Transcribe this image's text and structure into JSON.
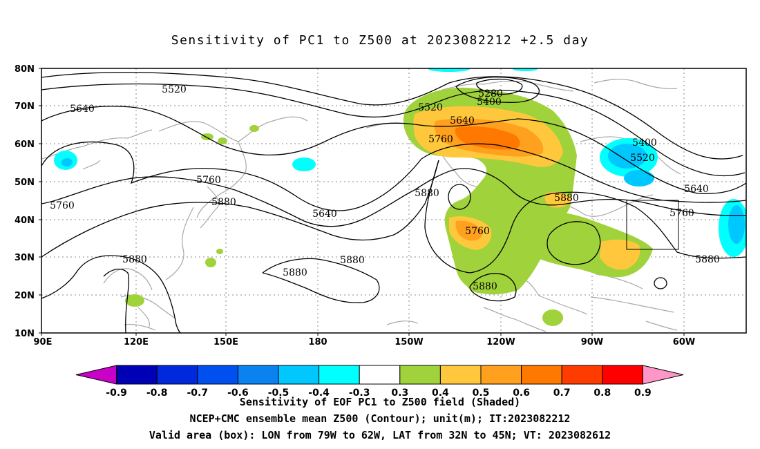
{
  "title": "Sensitivity of PC1 to Z500 at 2023082212 +2.5 day",
  "map": {
    "projection": "cylindrical equidistant",
    "lon_range": [
      "90E",
      "30W"
    ],
    "lat_range": [
      "10N",
      "80N"
    ],
    "x_ticks": [
      "90E",
      "120E",
      "150E",
      "180",
      "150W",
      "120W",
      "90W",
      "60W"
    ],
    "y_ticks": [
      "80N",
      "70N",
      "60N",
      "50N",
      "40N",
      "30N",
      "20N",
      "10N"
    ],
    "grid": "dotted",
    "coastline_color": "#a0a0a0",
    "contour_labels": [
      "5520",
      "5640",
      "5760",
      "5880",
      "5280",
      "5400",
      "5520",
      "5640",
      "5760",
      "5880",
      "5760",
      "5400",
      "5520",
      "5640",
      "5760",
      "5880",
      "5880",
      "5880",
      "5880",
      "5760",
      "5880",
      "5880",
      "5640"
    ],
    "valid_box": {
      "lon_west": "79W",
      "lon_east": "62W",
      "lat_south": "32N",
      "lat_north": "45N"
    }
  },
  "colorbar": {
    "labels": [
      "-0.9",
      "-0.8",
      "-0.7",
      "-0.6",
      "-0.5",
      "-0.4",
      "-0.3",
      "0.3",
      "0.4",
      "0.5",
      "0.6",
      "0.7",
      "0.8",
      "0.9"
    ],
    "colors": [
      "#c800c8",
      "#0000b4",
      "#0028dc",
      "#0050f0",
      "#0a82f0",
      "#00c8ff",
      "#00ffff",
      "#ffffff",
      "#a0d23c",
      "#ffc83c",
      "#ffa01e",
      "#ff7800",
      "#ff3c00",
      "#ff0000",
      "#ff96c8"
    ]
  },
  "captions": {
    "line1": "Sensitivity of EOF PC1 to Z500 field (Shaded)",
    "line2": "NCEP+CMC ensemble mean Z500 (Contour); unit(m); IT:2023082212",
    "line3": "Valid area (box): LON from 79W to 62W, LAT from 32N to 45N; VT: 2023082612"
  }
}
